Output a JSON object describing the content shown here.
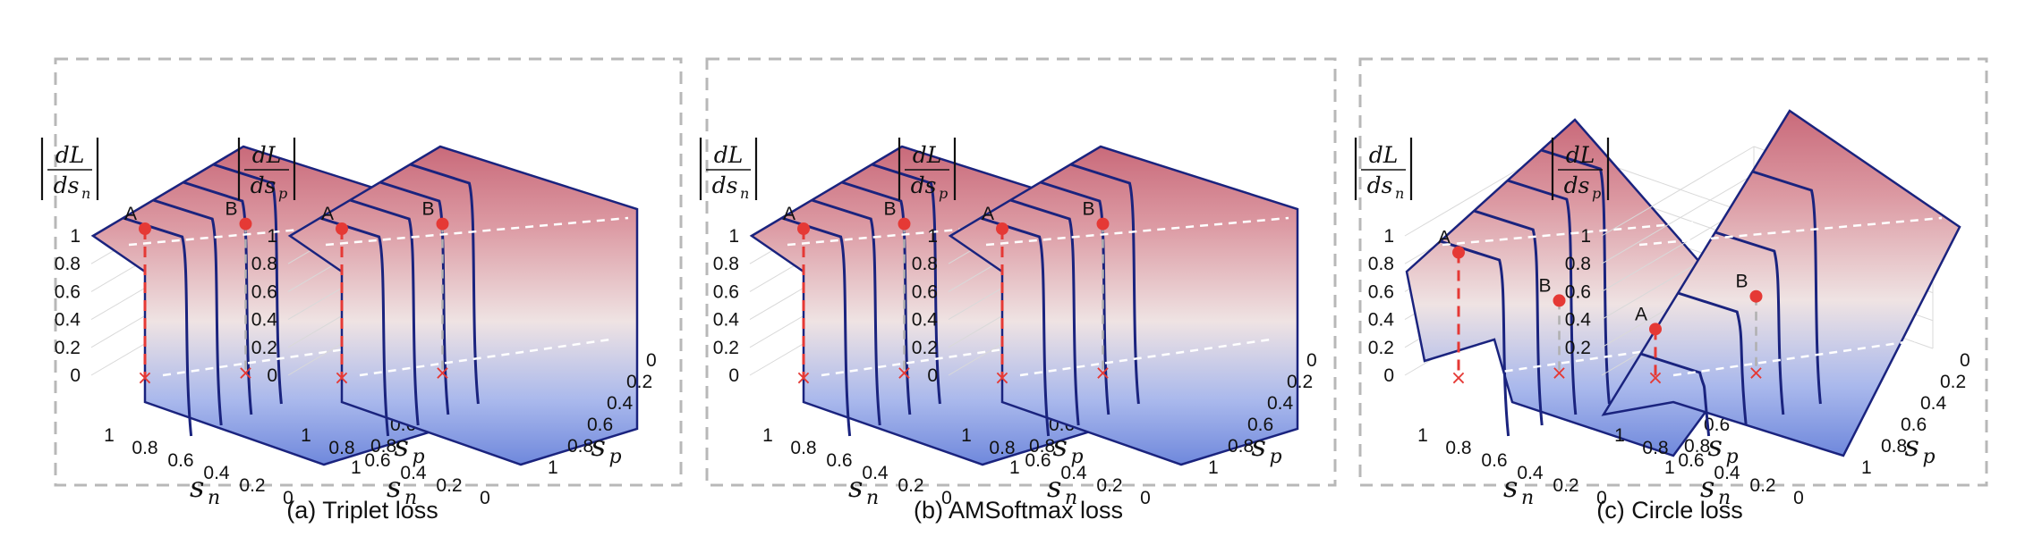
{
  "chart_data": [
    {
      "type": "surface",
      "panel": "(a) Triplet loss",
      "zlabel": "|dL/ds_n|",
      "zlabel_num": "dL",
      "zlabel_den": "ds",
      "zlabel_sub": "n",
      "xlabel": "s",
      "xlabel_sub": "n",
      "ylabel": "s",
      "ylabel_sub": "p",
      "x_ticks": [
        "1",
        "0.8",
        "0.6",
        "0.4",
        "0.2",
        "0"
      ],
      "y_ticks": [
        "0",
        "0.2",
        "0.4",
        "0.6",
        "0.8",
        "1"
      ],
      "z_ticks": [
        "0",
        "0.2",
        "0.4",
        "0.6",
        "0.8",
        "1"
      ],
      "points": [
        {
          "label": "A",
          "value": 1
        },
        {
          "label": "B",
          "value": 1
        }
      ]
    },
    {
      "type": "surface",
      "panel": "(a) Triplet loss",
      "zlabel": "|dL/ds_p|",
      "zlabel_num": "dL",
      "zlabel_den": "ds",
      "zlabel_sub": "p",
      "xlabel": "s",
      "xlabel_sub": "n",
      "ylabel": "s",
      "ylabel_sub": "p",
      "x_ticks": [
        "1",
        "0.8",
        "0.6",
        "0.4",
        "0.2",
        "0"
      ],
      "y_ticks": [
        "0",
        "0.2",
        "0.4",
        "0.6",
        "0.8",
        "1"
      ],
      "z_ticks": [
        "0",
        "0.2",
        "0.4",
        "0.6",
        "0.8",
        "1"
      ],
      "points": [
        {
          "label": "A",
          "value": 1
        },
        {
          "label": "B",
          "value": 1
        }
      ]
    },
    {
      "type": "surface",
      "panel": "(b) AMSoftmax loss",
      "zlabel": "|dL/ds_n|",
      "zlabel_num": "dL",
      "zlabel_den": "ds",
      "zlabel_sub": "n",
      "xlabel": "s",
      "xlabel_sub": "n",
      "ylabel": "s",
      "ylabel_sub": "p",
      "x_ticks": [
        "1",
        "0.8",
        "0.6",
        "0.4",
        "0.2",
        "0"
      ],
      "y_ticks": [
        "0",
        "0.2",
        "0.4",
        "0.6",
        "0.8",
        "1"
      ],
      "z_ticks": [
        "0",
        "0.2",
        "0.4",
        "0.6",
        "0.8",
        "1"
      ],
      "points": [
        {
          "label": "A",
          "value": 1
        },
        {
          "label": "B",
          "value": 1
        }
      ]
    },
    {
      "type": "surface",
      "panel": "(b) AMSoftmax loss",
      "zlabel": "|dL/ds_p|",
      "zlabel_num": "dL",
      "zlabel_den": "ds",
      "zlabel_sub": "p",
      "xlabel": "s",
      "xlabel_sub": "n",
      "ylabel": "s",
      "ylabel_sub": "p",
      "x_ticks": [
        "1",
        "0.8",
        "0.6",
        "0.4",
        "0.2",
        "0"
      ],
      "y_ticks": [
        "0",
        "0.2",
        "0.4",
        "0.6",
        "0.8",
        "1"
      ],
      "z_ticks": [
        "0",
        "0.2",
        "0.4",
        "0.6",
        "0.8",
        "1"
      ],
      "points": [
        {
          "label": "A",
          "value": 1
        },
        {
          "label": "B",
          "value": 1
        }
      ]
    },
    {
      "type": "surface",
      "panel": "(c) Circle loss",
      "zlabel": "|dL/ds_n|",
      "zlabel_num": "dL",
      "zlabel_den": "ds",
      "zlabel_sub": "n",
      "xlabel": "s",
      "xlabel_sub": "n",
      "ylabel": "s",
      "ylabel_sub": "p",
      "x_ticks": [
        "1",
        "0.8",
        "0.6",
        "0.4",
        "0.2",
        "0"
      ],
      "y_ticks": [
        "0",
        "0.2",
        "0.4",
        "0.6",
        "0.8",
        "1"
      ],
      "z_ticks": [
        "0",
        "0.2",
        "0.4",
        "0.6",
        "0.8",
        "1"
      ],
      "points": [
        {
          "label": "A",
          "value": 0.83
        },
        {
          "label": "B",
          "value": 0.45
        }
      ]
    },
    {
      "type": "surface",
      "panel": "(c) Circle loss",
      "zlabel": "|dL/ds_p|",
      "zlabel_num": "dL",
      "zlabel_den": "ds",
      "zlabel_sub": "p",
      "xlabel": "s",
      "xlabel_sub": "n",
      "ylabel": "s",
      "ylabel_sub": "p",
      "x_ticks": [
        "1",
        "0.8",
        "0.6",
        "0.4",
        "0.2",
        "0"
      ],
      "y_ticks": [
        "0",
        "0.2",
        "0.4",
        "0.6",
        "0.8",
        "1"
      ],
      "z_ticks": [
        "0.2",
        "0.4",
        "0.6",
        "0.8",
        "1"
      ],
      "points": [
        {
          "label": "A",
          "value": 0.28
        },
        {
          "label": "B",
          "value": 0.48
        }
      ]
    }
  ],
  "captions": [
    "(a) Triplet loss",
    "(b) AMSoftmax loss",
    "(c) Circle loss"
  ],
  "colors": {
    "surface_top": "#c96a7a",
    "surface_mid": "#efe3e3",
    "surface_bottom": "#6f88dc",
    "contour": "#1a237e",
    "marker": "#e53935",
    "frame": "#b8b8b8"
  }
}
